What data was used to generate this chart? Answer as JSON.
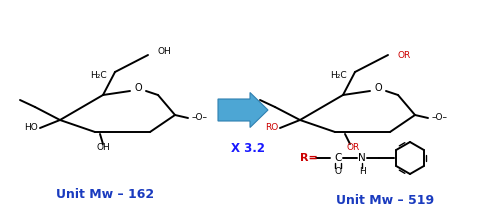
{
  "bg_color": "#ffffff",
  "arrow_color": "#4da6d4",
  "mw_color": "#1a3bbf",
  "red_color": "#cc0000",
  "black": "#000000",
  "left_mw_text": "Unit Mw – 162",
  "right_mw_text": "Unit Mw – 519",
  "multiply_text": "X 3.2",
  "multiply_color": "#1a1aff"
}
